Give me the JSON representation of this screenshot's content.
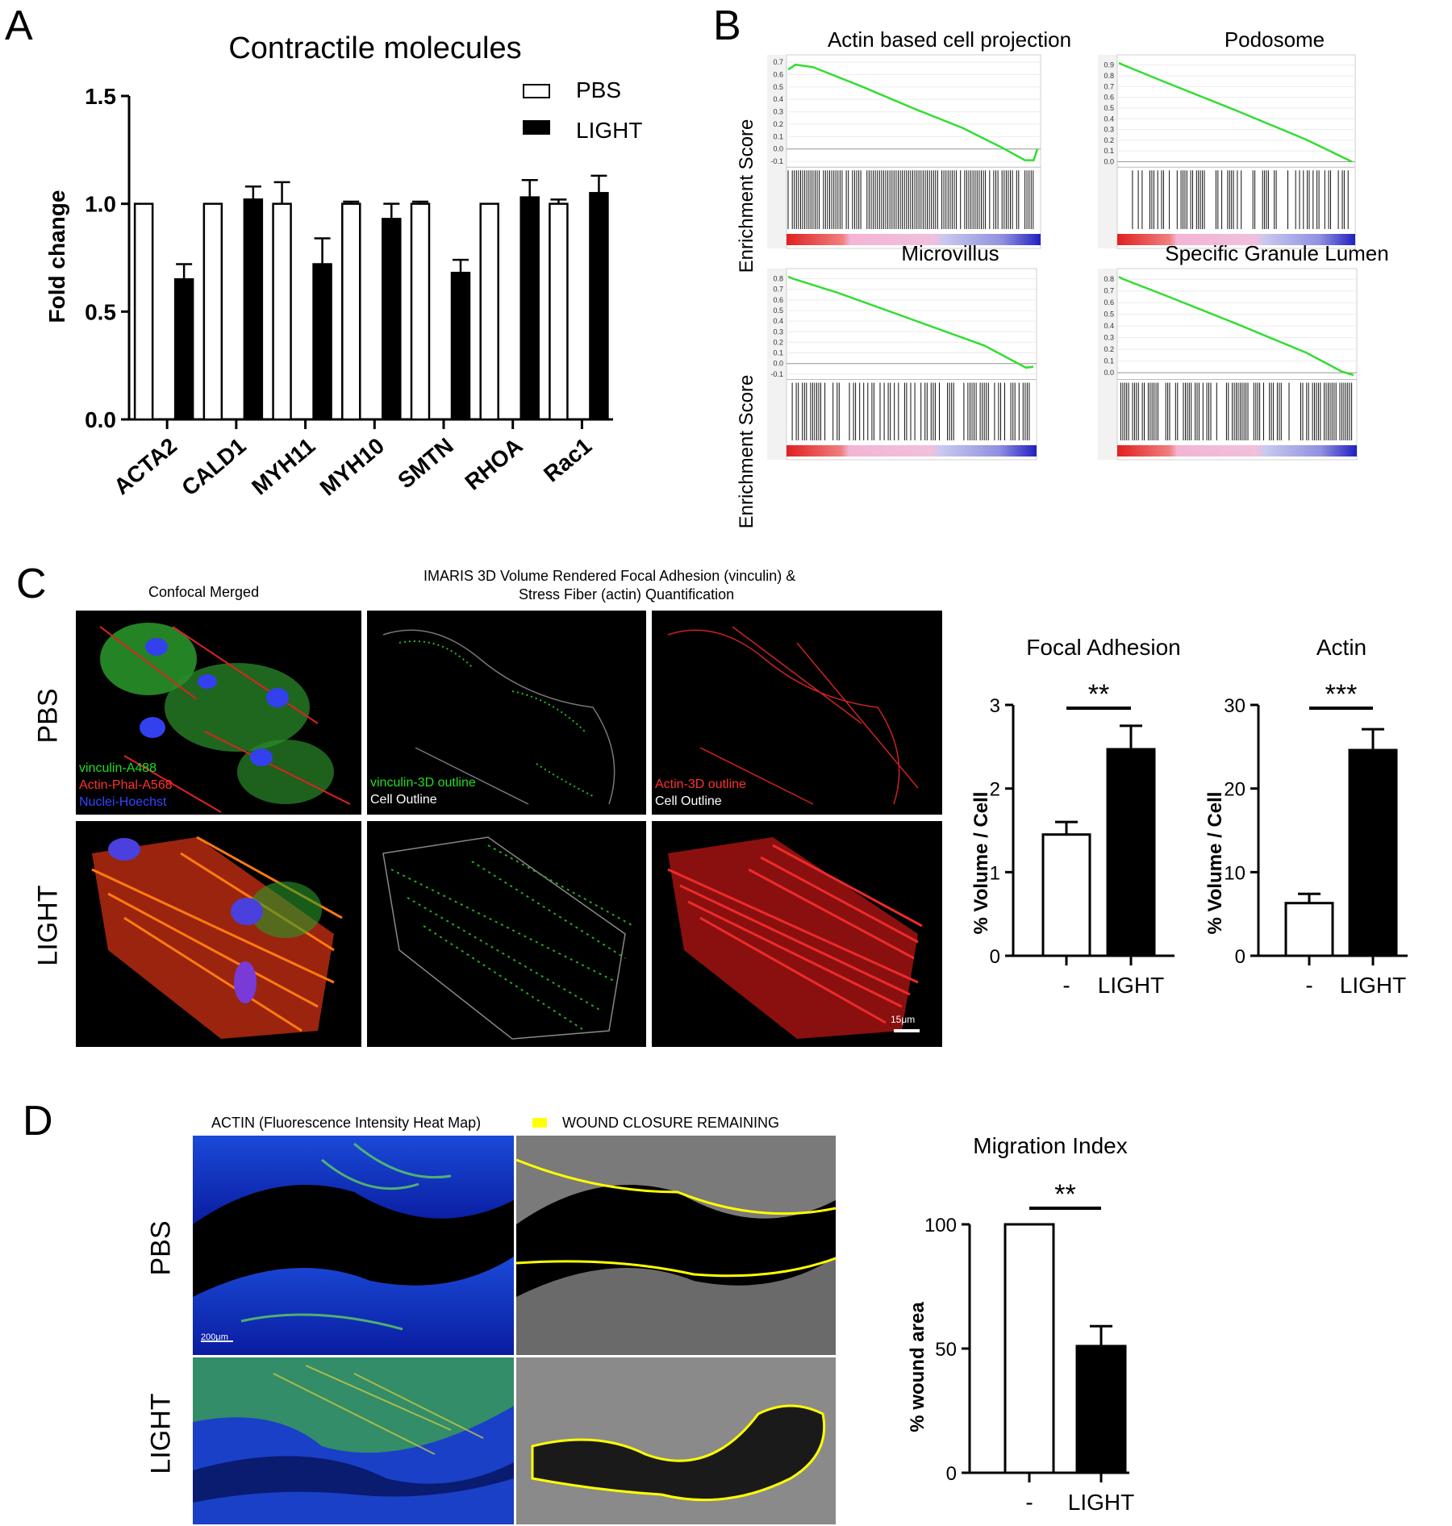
{
  "panels": {
    "a": "A",
    "b": "B",
    "c": "C",
    "d": "D"
  },
  "colors": {
    "pbs_bar": "#ffffff",
    "light_bar": "#000000",
    "gsea_curve": "#33dd33",
    "vinculin": "#22cc22",
    "actin": "#dd2222",
    "nuclei": "#2233ee",
    "wound": "#ffff00"
  },
  "panel_c": {
    "header_left": "Confocal Merged",
    "header_mid_line1": "IMARIS 3D Volume Rendered Focal Adhesion (vinculin) &",
    "header_mid_line2": "Stress Fiber (actin) Quantification",
    "row_pbs": "PBS",
    "row_light": "LIGHT",
    "legend_vinculin": "vinculin-A488",
    "legend_actin": "Actin-Phal-A568",
    "legend_nuclei": "Nuclei-Hoechst",
    "vinc_outline": "vinculin-3D outline",
    "cell_outline": "Cell Outline",
    "actin_outline": "Actin-3D outline",
    "scale_bar": "15μm"
  },
  "panel_d": {
    "header_actin": "ACTIN (Fluorescence Intensity Heat Map)",
    "header_wound": "WOUND CLOSURE REMAINING",
    "row_pbs": "PBS",
    "row_light": "LIGHT",
    "scale_bar": "200μm"
  },
  "chart_data": [
    {
      "id": "A",
      "type": "bar",
      "title": "Contractile molecules",
      "ylabel": "Fold change",
      "xlabel": "",
      "ylim": [
        0,
        1.5
      ],
      "yticks": [
        "0.0",
        "0.5",
        "1.0",
        "1.5"
      ],
      "ytick_values": [
        0,
        0.5,
        1.0,
        1.5
      ],
      "categories": [
        "ACTA2",
        "CALD1",
        "MYH11",
        "MYH10",
        "SMTN",
        "RHOA",
        "Rac1"
      ],
      "series": [
        {
          "name": "PBS",
          "values": [
            1.0,
            1.0,
            1.0,
            1.0,
            1.0,
            1.0,
            1.0
          ],
          "errors": [
            0.0,
            0.0,
            0.1,
            0.01,
            0.01,
            0.0,
            0.02
          ]
        },
        {
          "name": "LIGHT",
          "values": [
            0.65,
            1.02,
            0.72,
            0.93,
            0.68,
            1.03,
            1.05
          ],
          "errors": [
            0.07,
            0.06,
            0.12,
            0.07,
            0.06,
            0.08,
            0.08
          ]
        }
      ],
      "legend_position": "top-right"
    },
    {
      "id": "B",
      "type": "line",
      "ylabel": "Enrichment Score",
      "subplots": [
        {
          "title": "Actin based cell projection",
          "yticks": [
            "0.7",
            "0.6",
            "0.5",
            "0.4",
            "0.3",
            "0.2",
            "0.1",
            "0.0",
            "-0.1"
          ],
          "ytick_values": [
            0.7,
            0.6,
            0.5,
            0.4,
            0.3,
            0.2,
            0.1,
            0.0,
            -0.1
          ],
          "ylim": [
            -0.12,
            0.72
          ],
          "x": [
            0,
            0.03,
            0.1,
            0.3,
            0.5,
            0.7,
            0.85,
            0.95,
            0.985,
            1.0
          ],
          "y": [
            0.64,
            0.68,
            0.66,
            0.5,
            0.33,
            0.17,
            0.02,
            -0.09,
            -0.09,
            0.0
          ]
        },
        {
          "title": "Podosome",
          "yticks": [
            "0.9",
            "0.8",
            "0.7",
            "0.6",
            "0.5",
            "0.4",
            "0.3",
            "0.2",
            "0.1",
            "0.0"
          ],
          "ytick_values": [
            0.9,
            0.8,
            0.7,
            0.6,
            0.5,
            0.4,
            0.3,
            0.2,
            0.1,
            0.0
          ],
          "ylim": [
            -0.02,
            0.95
          ],
          "x": [
            0,
            0.02,
            0.2,
            0.5,
            0.8,
            1.0
          ],
          "y": [
            0.92,
            0.9,
            0.74,
            0.48,
            0.21,
            0.0
          ]
        },
        {
          "title": "Microvillus",
          "yticks": [
            "0.8",
            "0.7",
            "0.6",
            "0.5",
            "0.4",
            "0.3",
            "0.2",
            "0.1",
            "0.0",
            "-0.1"
          ],
          "ytick_values": [
            0.8,
            0.7,
            0.6,
            0.5,
            0.4,
            0.3,
            0.2,
            0.1,
            0.0,
            -0.1
          ],
          "ylim": [
            -0.12,
            0.85
          ],
          "x": [
            0,
            0.02,
            0.2,
            0.5,
            0.8,
            0.97,
            1.0
          ],
          "y": [
            0.82,
            0.8,
            0.67,
            0.42,
            0.17,
            -0.04,
            -0.03
          ]
        },
        {
          "title": "Specific Granule Lumen",
          "yticks": [
            "0.8",
            "0.7",
            "0.6",
            "0.5",
            "0.4",
            "0.3",
            "0.2",
            "0.1",
            "0.0"
          ],
          "ytick_values": [
            0.8,
            0.7,
            0.6,
            0.5,
            0.4,
            0.3,
            0.2,
            0.1,
            0.0
          ],
          "ylim": [
            -0.03,
            0.85
          ],
          "x": [
            0,
            0.02,
            0.2,
            0.5,
            0.8,
            0.95,
            1.0
          ],
          "y": [
            0.82,
            0.8,
            0.66,
            0.42,
            0.17,
            0.01,
            -0.02
          ]
        }
      ]
    },
    {
      "id": "C1",
      "type": "bar",
      "title": "Focal Adhesion",
      "ylabel": "% Volume / Cell",
      "ylim": [
        0,
        3
      ],
      "yticks": [
        "0",
        "1",
        "2",
        "3"
      ],
      "ytick_values": [
        0,
        1,
        2,
        3
      ],
      "categories": [
        "-",
        "LIGHT"
      ],
      "values": [
        1.45,
        2.47
      ],
      "errors": [
        0.15,
        0.28
      ],
      "significance": "**"
    },
    {
      "id": "C2",
      "type": "bar",
      "title": "Actin",
      "ylabel": "% Volume / Cell",
      "ylim": [
        0,
        30
      ],
      "yticks": [
        "0",
        "10",
        "20",
        "30"
      ],
      "ytick_values": [
        0,
        10,
        20,
        30
      ],
      "categories": [
        "-",
        "LIGHT"
      ],
      "values": [
        6.3,
        24.6
      ],
      "errors": [
        1.1,
        2.5
      ],
      "significance": "***"
    },
    {
      "id": "D",
      "type": "bar",
      "title": "Migration Index",
      "ylabel": "% wound area",
      "ylim": [
        0,
        100
      ],
      "yticks": [
        "0",
        "50",
        "100"
      ],
      "ytick_values": [
        0,
        50,
        100
      ],
      "categories": [
        "-",
        "LIGHT"
      ],
      "values": [
        100,
        51
      ],
      "errors": [
        0,
        8
      ],
      "significance": "**"
    }
  ]
}
